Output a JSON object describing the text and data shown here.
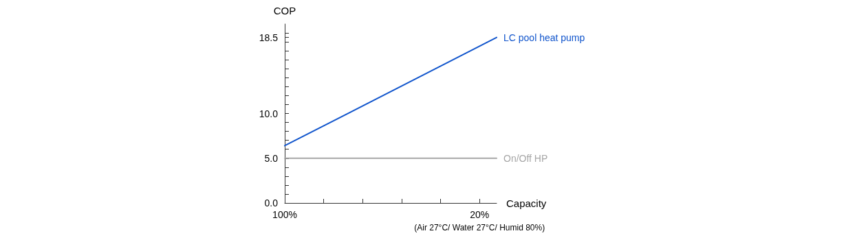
{
  "chart_data": {
    "type": "line",
    "xlabel": "Capacity",
    "ylabel": "COP",
    "x": [
      100,
      13
    ],
    "series": [
      {
        "name": "LC pool heat pump",
        "color": "#1155cc",
        "values": [
          6.4,
          18.5
        ]
      },
      {
        "name": "On/Off HP",
        "color": "#a6a6a6",
        "values": [
          5.0,
          5.0
        ]
      }
    ],
    "xlim": [
      100,
      13
    ],
    "xticks": [
      {
        "value": 100,
        "label": "100%"
      },
      {
        "value": 84,
        "label": null
      },
      {
        "value": 68,
        "label": null
      },
      {
        "value": 52,
        "label": null
      },
      {
        "value": 36,
        "label": null
      },
      {
        "value": 20,
        "label": "20%"
      }
    ],
    "ylim": [
      0,
      20
    ],
    "yticks": [
      {
        "value": 0,
        "label": "0.0"
      },
      {
        "value": 1,
        "label": null
      },
      {
        "value": 2,
        "label": null
      },
      {
        "value": 3,
        "label": null
      },
      {
        "value": 4,
        "label": null
      },
      {
        "value": 5,
        "label": "5.0"
      },
      {
        "value": 6,
        "label": null
      },
      {
        "value": 7,
        "label": null
      },
      {
        "value": 8,
        "label": null
      },
      {
        "value": 9,
        "label": null
      },
      {
        "value": 10,
        "label": "10.0"
      },
      {
        "value": 11,
        "label": null
      },
      {
        "value": 12,
        "label": null
      },
      {
        "value": 13,
        "label": null
      },
      {
        "value": 14,
        "label": null
      },
      {
        "value": 15,
        "label": null
      },
      {
        "value": 16,
        "label": null
      },
      {
        "value": 17,
        "label": null
      },
      {
        "value": 18,
        "label": null
      },
      {
        "value": 18.5,
        "label": "18.5"
      },
      {
        "value": 19,
        "label": null
      }
    ],
    "annotations": [
      "(Air 27°C/ Water 27°C/ Humid 80%)"
    ],
    "grid": false,
    "legend": false,
    "marker": "none",
    "line_style": "solid"
  }
}
